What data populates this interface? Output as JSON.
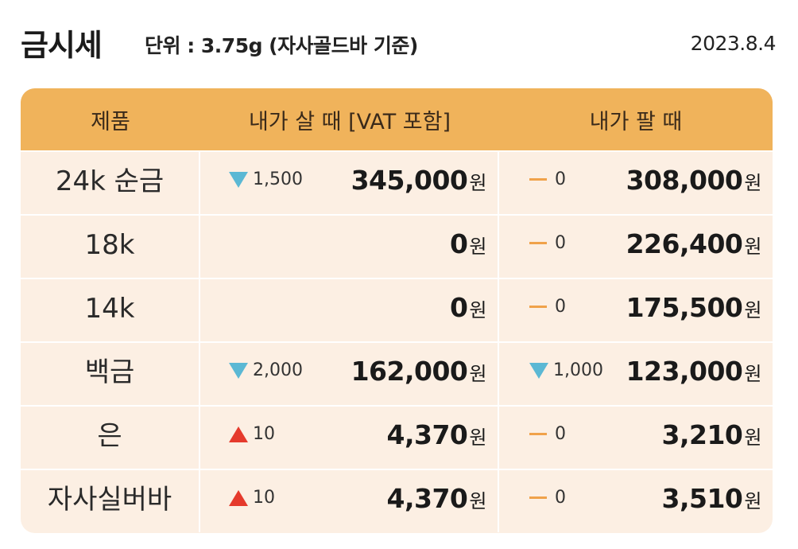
{
  "header": {
    "title": "금시세",
    "unit": "단위 : 3.75g (자사골드바 기준)",
    "date": "2023.8.4"
  },
  "table": {
    "columns": [
      "제품",
      "내가 살 때 [VAT 포함]",
      "내가 팔 때"
    ],
    "currency": "원",
    "rows": [
      {
        "product": "24k 순금",
        "buy_change": "1,500",
        "buy_dir": "down",
        "buy_price": "345,000",
        "sell_change": "0",
        "sell_dir": "none",
        "sell_price": "308,000"
      },
      {
        "product": "18k",
        "buy_change": "",
        "buy_dir": "",
        "buy_price": "0",
        "sell_change": "0",
        "sell_dir": "none",
        "sell_price": "226,400"
      },
      {
        "product": "14k",
        "buy_change": "",
        "buy_dir": "",
        "buy_price": "0",
        "sell_change": "0",
        "sell_dir": "none",
        "sell_price": "175,500"
      },
      {
        "product": "백금",
        "buy_change": "2,000",
        "buy_dir": "down",
        "buy_price": "162,000",
        "sell_change": "1,000",
        "sell_dir": "down",
        "sell_price": "123,000"
      },
      {
        "product": "은",
        "buy_change": "10",
        "buy_dir": "up",
        "buy_price": "4,370",
        "sell_change": "0",
        "sell_dir": "none",
        "sell_price": "3,210"
      },
      {
        "product": "자사실버바",
        "buy_change": "10",
        "buy_dir": "up",
        "buy_price": "4,370",
        "sell_change": "0",
        "sell_dir": "none",
        "sell_price": "3,510"
      }
    ]
  },
  "colors": {
    "header_bg": "#f0b35b",
    "row_bg": "#fcefe3",
    "down": "#5bb8d4",
    "up": "#e53a2c",
    "flat": "#f0a24a"
  }
}
